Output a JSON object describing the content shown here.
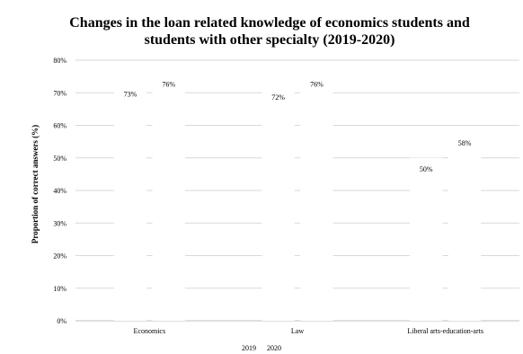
{
  "chart_data": {
    "type": "bar",
    "title_lines": [
      "Changes in the loan related knowledge of economics students and",
      "students with other specialty (2019-2020)"
    ],
    "xlabel": "",
    "ylabel": "Proportion of correct answers (%)",
    "categories": [
      "Economics",
      "Law",
      "Liberal arts-education-arts"
    ],
    "series": [
      {
        "name": "2019",
        "values": [
          73,
          72,
          50
        ],
        "labels": [
          "73%",
          "72%",
          "50%"
        ]
      },
      {
        "name": "2020",
        "values": [
          76,
          76,
          58
        ],
        "labels": [
          "76%",
          "76%",
          "58%"
        ]
      }
    ],
    "yticks": [
      0,
      10,
      20,
      30,
      40,
      50,
      60,
      70,
      80
    ],
    "ytick_labels": [
      "0%",
      "10%",
      "20%",
      "30%",
      "40%",
      "50%",
      "60%",
      "70%",
      "80%"
    ],
    "ylim": [
      0,
      80
    ],
    "grid": true,
    "legend": "bottom-center",
    "bar_fill": "#ffffff",
    "gridline_color": "#d9d9d9",
    "axis_color": "#bfbfbf"
  }
}
